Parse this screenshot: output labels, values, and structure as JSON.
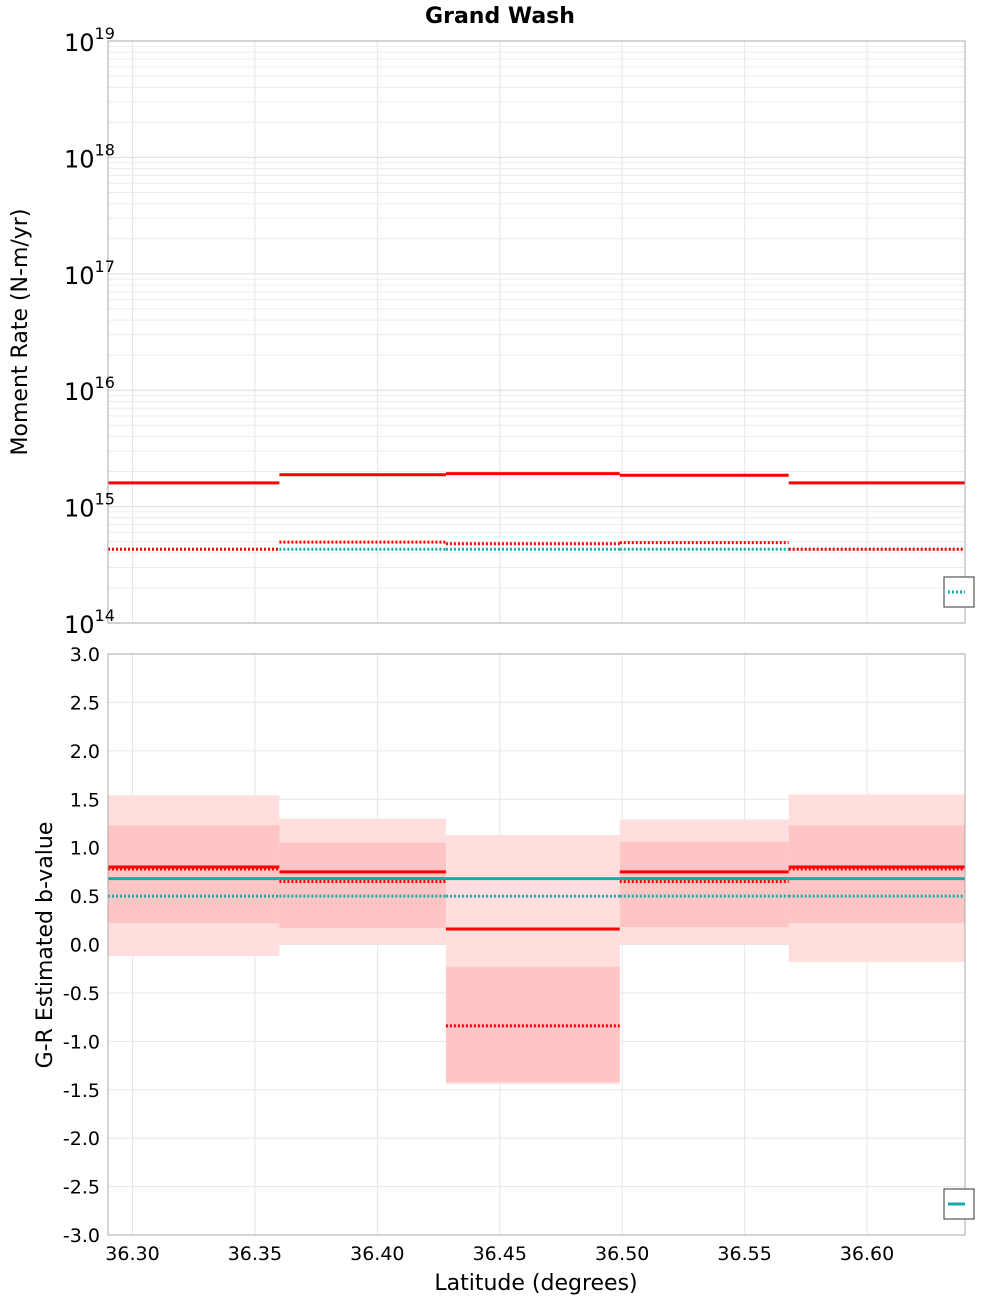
{
  "chart_data": {
    "title": "Grand Wash",
    "type": "line",
    "xlabel": "Latitude (degrees)",
    "xlim": [
      36.29,
      36.64
    ],
    "xticks": [
      "36.30",
      "36.35",
      "36.40",
      "36.45",
      "36.50",
      "36.55",
      "36.60"
    ],
    "xtick_values": [
      36.3,
      36.35,
      36.4,
      36.45,
      36.5,
      36.55,
      36.6
    ],
    "segments": [
      [
        36.29,
        36.36
      ],
      [
        36.36,
        36.428
      ],
      [
        36.428,
        36.499
      ],
      [
        36.499,
        36.568
      ],
      [
        36.568,
        36.64
      ]
    ],
    "panels": [
      {
        "name": "moment-rate",
        "ylabel": "Moment Rate (N-m/yr)",
        "yscale": "log",
        "ylim_exp": [
          14,
          19
        ],
        "ytick_exponents": [
          "14",
          "15",
          "16",
          "17",
          "18",
          "19"
        ],
        "ytick_base": "10",
        "series": [
          {
            "name": "red-solid",
            "color": "#ff0000",
            "style": "solid",
            "values": [
              1600000000000000.0,
              1880000000000000.0,
              1920000000000000.0,
              1860000000000000.0,
              1600000000000000.0
            ]
          },
          {
            "name": "red-dotted",
            "color": "#ff0000",
            "style": "dotted",
            "values": [
              430000000000000.0,
              495000000000000.0,
              480000000000000.0,
              490000000000000.0,
              430000000000000.0
            ]
          },
          {
            "name": "teal-dotted",
            "color": "#1aa9a9",
            "style": "dotted",
            "values": [
              430000000000000.0,
              430000000000000.0,
              430000000000000.0,
              430000000000000.0,
              430000000000000.0
            ]
          }
        ]
      },
      {
        "name": "b-value",
        "ylabel": "G-R Estimated b-value",
        "yscale": "linear",
        "ylim": [
          -3.0,
          3.0
        ],
        "yticks": [
          "-3.0",
          "-2.5",
          "-2.0",
          "-1.5",
          "-1.0",
          "-0.5",
          "0.0",
          "0.5",
          "1.0",
          "1.5",
          "2.0",
          "2.5",
          "3.0"
        ],
        "ytick_values": [
          -3.0,
          -2.5,
          -2.0,
          -1.5,
          -1.0,
          -0.5,
          0.0,
          0.5,
          1.0,
          1.5,
          2.0,
          2.5,
          3.0
        ],
        "outer_bands": [
          [
            -0.12,
            1.54
          ],
          [
            0.0,
            1.3
          ],
          [
            -1.44,
            1.13
          ],
          [
            0.0,
            1.29
          ],
          [
            -0.18,
            1.55
          ]
        ],
        "inner_bands": [
          [
            0.22,
            1.23
          ],
          [
            0.17,
            1.05
          ],
          [
            -1.42,
            -0.23
          ],
          [
            0.18,
            1.06
          ],
          [
            0.22,
            1.23
          ]
        ],
        "series": [
          {
            "name": "red-solid",
            "color": "#ff0000",
            "style": "solid",
            "values": [
              0.8,
              0.75,
              0.16,
              0.75,
              0.8
            ]
          },
          {
            "name": "red-dotted",
            "color": "#ff0000",
            "style": "dotted",
            "values": [
              0.78,
              0.65,
              -0.84,
              0.65,
              0.78
            ]
          },
          {
            "name": "teal-solid",
            "color": "#1aa9a9",
            "style": "solid",
            "values": [
              0.68,
              0.68,
              0.68,
              0.68,
              0.68
            ]
          },
          {
            "name": "teal-dotted",
            "color": "#1aa9a9",
            "style": "dotted",
            "values": [
              0.5,
              0.5,
              0.5,
              0.5,
              0.5
            ]
          }
        ]
      }
    ],
    "legend": "bottom-right (clipped)",
    "colors": {
      "red": "#ff0000",
      "teal": "#1aa9a9",
      "band_outer": "#ffdede",
      "band_inner": "#ffc4c4",
      "grid": "#e6e6e6"
    }
  }
}
